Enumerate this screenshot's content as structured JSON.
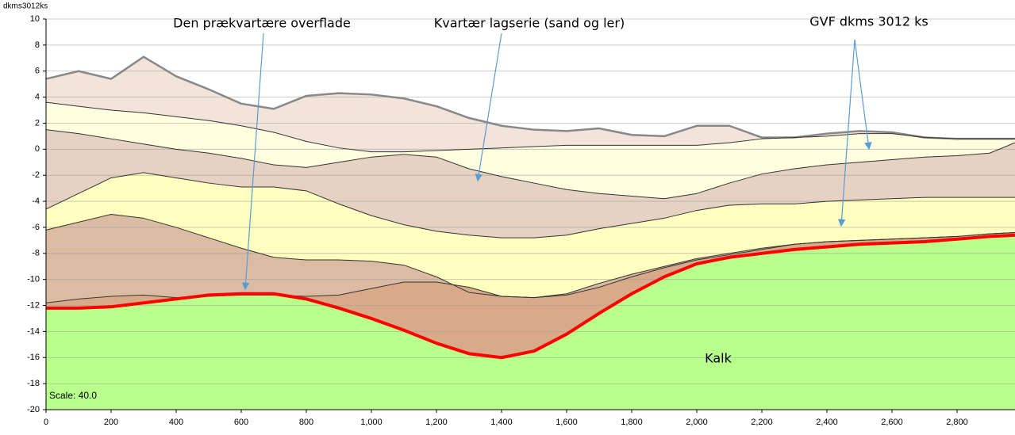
{
  "chart_data": {
    "type": "cross-section",
    "y_label": "dkms3012ks",
    "annotations": [
      "Den prækvartære overflade",
      "Kvartær lagserie (sand og ler)",
      "GVF dkms 3012 ks",
      "Kalk"
    ],
    "scale_label": "Scale: 40.0",
    "x": [
      0,
      100,
      200,
      300,
      400,
      500,
      600,
      700,
      800,
      900,
      1000,
      1100,
      1200,
      1300,
      1400,
      1500,
      1600,
      1700,
      1800,
      1900,
      2000,
      2100,
      2200,
      2300,
      2400,
      2500,
      2600,
      2700,
      2800,
      2900,
      2978
    ],
    "boundaries": [
      {
        "color": "#888888",
        "values": [
          5.4,
          6,
          5.4,
          7.1,
          5.6,
          4.6,
          3.5,
          3.1,
          4.1,
          4.3,
          4.2,
          3.9,
          3.3,
          2.4,
          1.8,
          1.5,
          1.4,
          1.6,
          1.1,
          1.0,
          1.8,
          1.8,
          0.9,
          0.9,
          1.2,
          1.4,
          1.3,
          0.9,
          0.8,
          0.8,
          0.8
        ]
      },
      {
        "color": "#333333",
        "values": [
          3.6,
          3.3,
          3.0,
          2.8,
          2.5,
          2.2,
          1.8,
          1.3,
          0.6,
          0.1,
          -0.2,
          -0.2,
          -0.1,
          0.0,
          0.1,
          0.2,
          0.3,
          0.3,
          0.3,
          0.3,
          0.3,
          0.5,
          0.8,
          0.9,
          1.0,
          1.2,
          1.2,
          0.9,
          0.8,
          0.8,
          0.8
        ]
      },
      {
        "color": "#333333",
        "values": [
          1.5,
          1.2,
          0.8,
          0.4,
          0.0,
          -0.3,
          -0.7,
          -1.2,
          -1.4,
          -1.0,
          -0.6,
          -0.4,
          -0.6,
          -1.5,
          -2.1,
          -2.6,
          -3.1,
          -3.4,
          -3.6,
          -3.8,
          -3.4,
          -2.6,
          -1.9,
          -1.5,
          -1.2,
          -1.0,
          -0.8,
          -0.6,
          -0.5,
          -0.3,
          0.5
        ]
      },
      {
        "color": "#333333",
        "values": [
          -4.6,
          -3.4,
          -2.2,
          -1.8,
          -2.2,
          -2.6,
          -2.9,
          -2.9,
          -3.2,
          -4.2,
          -5.1,
          -5.8,
          -6.3,
          -6.6,
          -6.8,
          -6.8,
          -6.6,
          -6.1,
          -5.7,
          -5.3,
          -4.7,
          -4.3,
          -4.2,
          -4.2,
          -4.0,
          -3.9,
          -3.8,
          -3.7,
          -3.7,
          -3.7,
          -3.7
        ]
      },
      {
        "color": "#333333",
        "values": [
          -6.2,
          -5.6,
          -5.0,
          -5.3,
          -6.0,
          -6.8,
          -7.6,
          -8.3,
          -8.5,
          -8.5,
          -8.6,
          -8.9,
          -9.8,
          -11.0,
          -11.3,
          -11.4,
          -11.1,
          -10.3,
          -9.6,
          -9.0,
          -8.4,
          -8.0,
          -7.6,
          -7.3,
          -7.1,
          -7.0,
          -6.9,
          -6.8,
          -6.7,
          -6.5,
          -6.4
        ]
      },
      {
        "color": "#333333",
        "values": [
          -11.8,
          -11.5,
          -11.3,
          -11.2,
          -11.4,
          -11.3,
          -11.2,
          -11.2,
          -11.3,
          -11.2,
          -10.7,
          -10.2,
          -10.2,
          -10.6,
          -11.3,
          -11.4,
          -11.2,
          -10.6,
          -9.8,
          -9.1,
          -8.5,
          -8.1,
          -7.7,
          -7.3,
          -7.1,
          -7.0,
          -6.9,
          -6.8,
          -6.7,
          -6.5,
          -6.4
        ]
      },
      {
        "color": "#ff0000",
        "values": [
          -12.2,
          -12.2,
          -12.1,
          -11.8,
          -11.5,
          -11.2,
          -11.1,
          -11.1,
          -11.5,
          -12.2,
          -13.0,
          -13.9,
          -14.9,
          -15.7,
          -16.0,
          -15.5,
          -14.2,
          -12.6,
          -11.1,
          -9.8,
          -8.8,
          -8.3,
          -8.0,
          -7.7,
          -7.5,
          -7.3,
          -7.2,
          -7.1,
          -6.9,
          -6.7,
          -6.6
        ]
      }
    ],
    "fills": [
      "#f2e4da",
      "#ffffe0",
      "#e6d2c2",
      "#ffffc0",
      "#dcbba3",
      "#d8aa88",
      "#b8ff8c"
    ],
    "xlim": [
      0,
      2978
    ],
    "ylim": [
      -20,
      10
    ],
    "xticks": [
      0,
      200,
      400,
      600,
      800,
      {
        "value": 1000,
        "label": "1,000"
      },
      {
        "value": 1200,
        "label": "1,200"
      },
      {
        "value": 1400,
        "label": "1,400"
      },
      {
        "value": 1600,
        "label": "1,600"
      },
      {
        "value": 1800,
        "label": "1,800"
      },
      {
        "value": 2000,
        "label": "2,000"
      },
      {
        "value": 2200,
        "label": "2,200"
      },
      {
        "value": 2400,
        "label": "2,400"
      },
      {
        "value": 2600,
        "label": "2,600"
      },
      {
        "value": 2800,
        "label": "2,800"
      }
    ],
    "yticks": [
      10,
      8,
      6,
      4,
      2,
      0,
      -2,
      -4,
      -6,
      -8,
      -10,
      -12,
      -14,
      -16,
      -18,
      -20
    ],
    "grid": true
  }
}
